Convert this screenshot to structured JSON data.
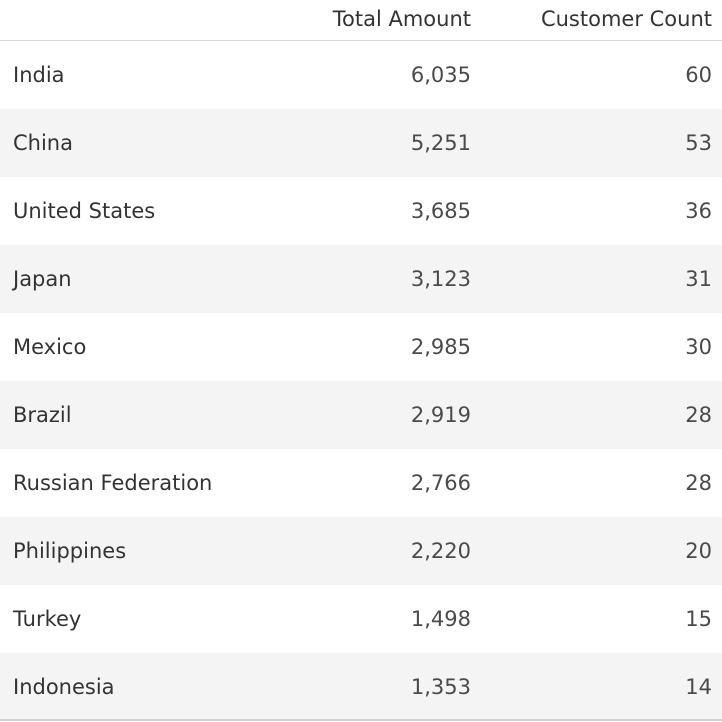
{
  "chart_data": {
    "type": "table",
    "columns": [
      "Total Amount",
      "Customer Count"
    ],
    "rows": [
      {
        "name": "India",
        "total_amount": "6,035",
        "customer_count": "60"
      },
      {
        "name": "China",
        "total_amount": "5,251",
        "customer_count": "53"
      },
      {
        "name": "United States",
        "total_amount": "3,685",
        "customer_count": "36"
      },
      {
        "name": "Japan",
        "total_amount": "3,123",
        "customer_count": "31"
      },
      {
        "name": "Mexico",
        "total_amount": "2,985",
        "customer_count": "30"
      },
      {
        "name": "Brazil",
        "total_amount": "2,919",
        "customer_count": "28"
      },
      {
        "name": "Russian Federation",
        "total_amount": "2,766",
        "customer_count": "28"
      },
      {
        "name": "Philippines",
        "total_amount": "2,220",
        "customer_count": "20"
      },
      {
        "name": "Turkey",
        "total_amount": "1,498",
        "customer_count": "15"
      },
      {
        "name": "Indonesia",
        "total_amount": "1,353",
        "customer_count": "14"
      }
    ]
  },
  "colors": {
    "row_alt": "#f4f4f4",
    "text": "#333333",
    "rule": "#d8d8d8"
  }
}
